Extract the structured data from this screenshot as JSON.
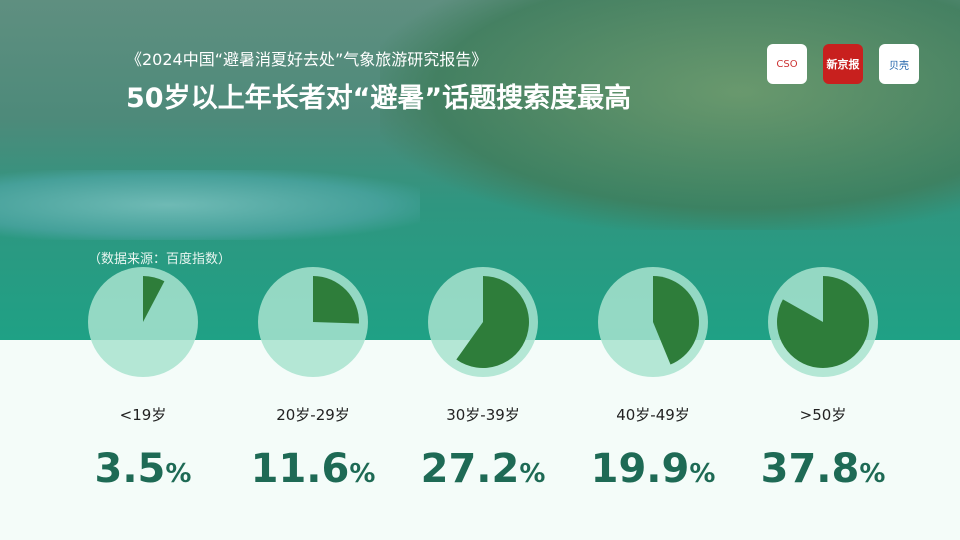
{
  "header": {
    "subtitle": "《2024中国“避暑消夏好去处”气象旅游研究报告》",
    "title": "50岁以上年长者对“避暑”话题搜索度最高",
    "source": "（数据来源：百度指数）"
  },
  "logos": [
    {
      "name": "中国气象服务协会"
    },
    {
      "name": "新京报"
    },
    {
      "name": "贝壳财经"
    }
  ],
  "colors": {
    "slice": "#2e7d3a",
    "pie_bg": "#a8e3cf",
    "value_text": "#1e6a55"
  },
  "chart_data": {
    "type": "pie",
    "title": "",
    "categories": [
      "<19岁",
      "20岁-29岁",
      "30岁-39岁",
      "40岁-49岁",
      ">50岁"
    ],
    "values": [
      3.5,
      11.6,
      27.2,
      19.9,
      37.8
    ],
    "unit": "%"
  }
}
